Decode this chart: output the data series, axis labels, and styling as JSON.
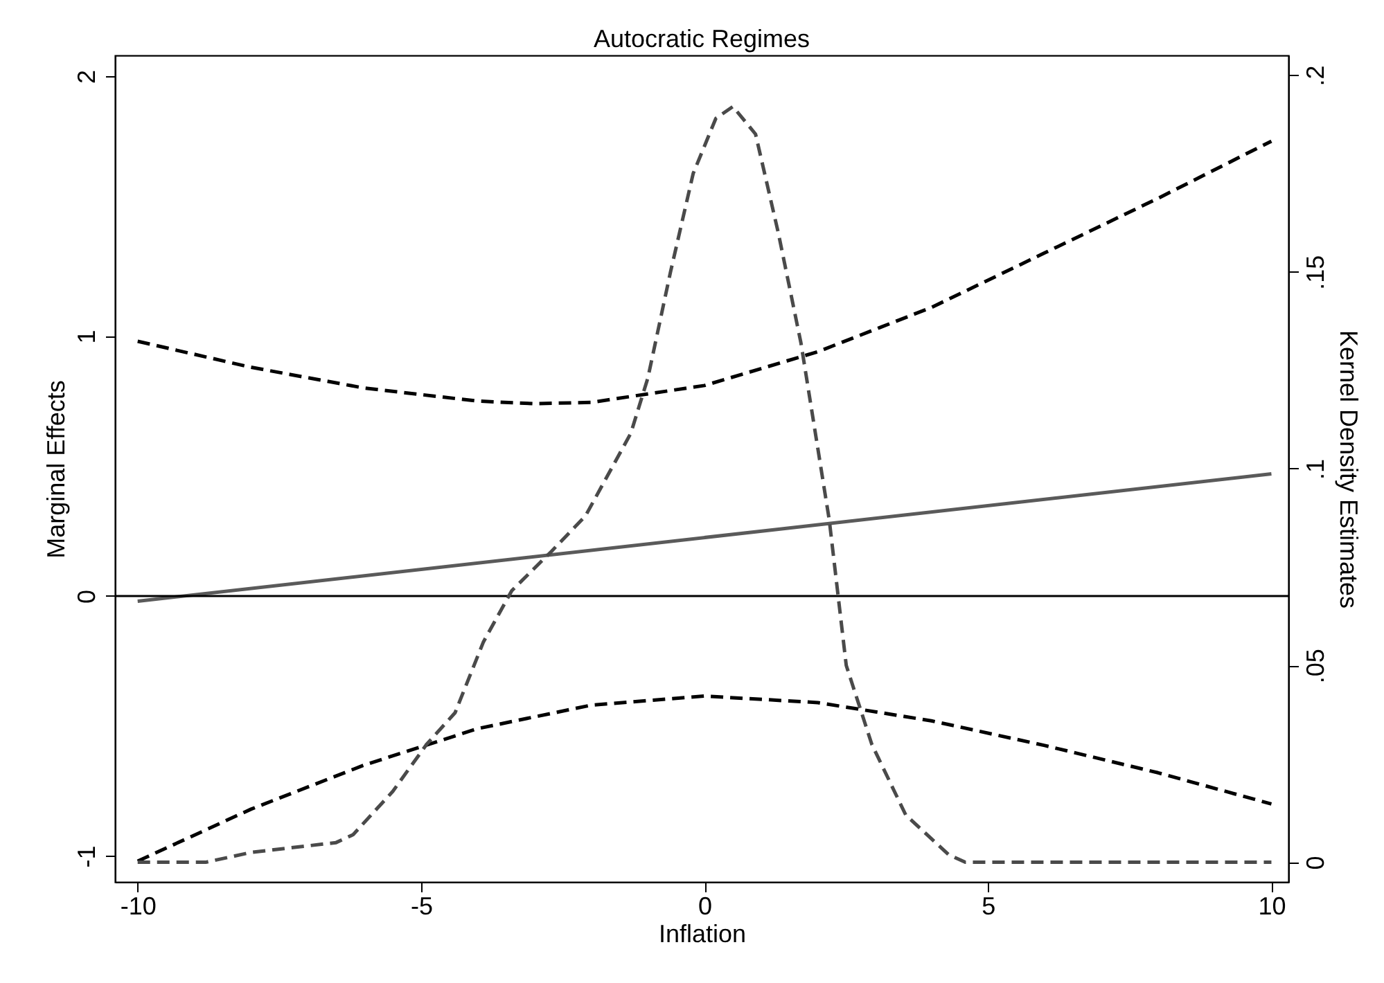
{
  "chart_data": {
    "type": "line",
    "title": "Autocratic Regimes",
    "xlabel": "Inflation",
    "ylabel": "Marginal Effects",
    "y2label": "Kernel Density Estimates",
    "xlim": [
      -10.4,
      10.3
    ],
    "xticks": [
      -10,
      -5,
      0,
      5,
      10
    ],
    "ylim": [
      -1.1,
      2.08
    ],
    "yticks": [
      -1,
      0,
      1,
      2
    ],
    "y2lim": [
      -0.005,
      0.205
    ],
    "y2ticks": [
      {
        "value": 0,
        "label": "0"
      },
      {
        "value": 0.05,
        "label": ".05"
      },
      {
        "value": 0.1,
        "label": ".1"
      },
      {
        "value": 0.15,
        "label": ".15"
      },
      {
        "value": 0.2,
        "label": ".2"
      }
    ],
    "grid": false,
    "ref_lines": [
      {
        "axis": "y",
        "value": 0,
        "color": "#000000",
        "line_style": "solid"
      }
    ],
    "series": [
      {
        "color": "#000000",
        "line_style": "dashed",
        "x": [
          -10,
          -8,
          -6,
          -4,
          -3,
          -2,
          0,
          2,
          4,
          6,
          8,
          10
        ],
        "values": [
          0.98,
          0.88,
          0.8,
          0.75,
          0.74,
          0.745,
          0.81,
          0.94,
          1.11,
          1.32,
          1.53,
          1.75
        ]
      },
      {
        "color": "#000000",
        "line_style": "dashed",
        "x": [
          -10,
          -8,
          -6,
          -5,
          -4,
          -2,
          0,
          2,
          4,
          6,
          8,
          10
        ],
        "values": [
          -1.02,
          -0.82,
          -0.65,
          -0.58,
          -0.51,
          -0.42,
          -0.385,
          -0.41,
          -0.48,
          -0.575,
          -0.68,
          -0.8
        ]
      },
      {
        "color": "#5a5a5a",
        "line_style": "solid",
        "x": [
          -10,
          10
        ],
        "values": [
          -0.02,
          0.47
        ]
      },
      {
        "color": "#4a4a4a",
        "line_style": "dashed",
        "axis": "y2",
        "x": [
          -10,
          -8.8,
          -8,
          -6.5,
          -6.2,
          -5.5,
          -4.9,
          -4.4,
          -3.9,
          -3.4,
          -2.7,
          -2.1,
          -1.3,
          -1,
          -0.6,
          -0.2,
          0.2,
          0.5,
          0.9,
          1.3,
          1.7,
          2.2,
          2.5,
          2.95,
          3.55,
          4.3,
          4.6,
          10
        ],
        "values": [
          0,
          0,
          0.0025,
          0.005,
          0.007,
          0.018,
          0.03,
          0.038,
          0.056,
          0.069,
          0.079,
          0.088,
          0.109,
          0.123,
          0.15,
          0.175,
          0.189,
          0.192,
          0.185,
          0.16,
          0.132,
          0.087,
          0.05,
          0.03,
          0.012,
          0.002,
          0,
          0
        ]
      }
    ]
  }
}
